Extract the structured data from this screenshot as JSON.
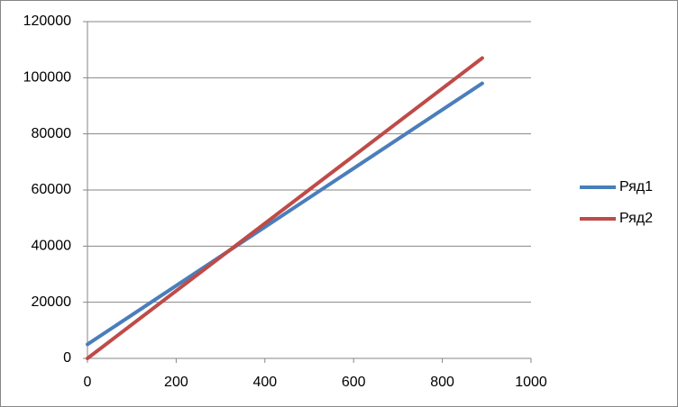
{
  "chart_data": {
    "type": "line",
    "series": [
      {
        "name": "Ряд1",
        "color": "#4a7ebb",
        "x": [
          0,
          890
        ],
        "values": [
          5000,
          98000
        ]
      },
      {
        "name": "Ряд2",
        "color": "#be4b48",
        "x": [
          0,
          890
        ],
        "values": [
          0,
          107000
        ]
      }
    ],
    "xlim": [
      0,
      1000
    ],
    "xticks": [
      0,
      200,
      400,
      600,
      800,
      1000
    ],
    "ylim": [
      0,
      120000
    ],
    "yticks": [
      0,
      20000,
      40000,
      60000,
      80000,
      100000,
      120000
    ],
    "grid": true,
    "legend": "right"
  }
}
